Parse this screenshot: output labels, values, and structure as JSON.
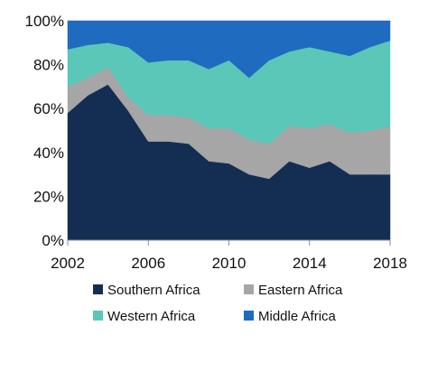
{
  "chart_data": {
    "type": "area",
    "stacking": "percent",
    "x": [
      2002,
      2003,
      2004,
      2005,
      2006,
      2007,
      2008,
      2009,
      2010,
      2011,
      2012,
      2013,
      2014,
      2015,
      2016,
      2017,
      2018
    ],
    "series": [
      {
        "name": "Southern Africa",
        "color": "#142d53",
        "values": [
          58,
          66,
          71,
          59,
          45,
          45,
          44,
          36,
          35,
          30,
          28,
          36,
          33,
          36,
          30,
          30,
          30
        ]
      },
      {
        "name": "Eastern Africa",
        "color": "#a6a6a6",
        "values": [
          12,
          8,
          8,
          6,
          12,
          12,
          12,
          15,
          16,
          16,
          16,
          16,
          18,
          17,
          19,
          20,
          22
        ]
      },
      {
        "name": "Western Africa",
        "color": "#5bc7b8",
        "values": [
          17,
          15,
          11,
          23,
          24,
          25,
          26,
          27,
          31,
          28,
          38,
          34,
          37,
          33,
          35,
          38,
          39
        ]
      },
      {
        "name": "Middle Africa",
        "color": "#1f6bbf",
        "values": [
          13,
          11,
          10,
          12,
          19,
          18,
          18,
          22,
          18,
          26,
          18,
          14,
          12,
          14,
          16,
          12,
          9
        ]
      }
    ],
    "ylim": [
      0,
      100
    ],
    "yticks": [
      "0%",
      "20%",
      "40%",
      "60%",
      "80%",
      "100%"
    ],
    "xticks": [
      "2002",
      "2006",
      "2010",
      "2014",
      "2018"
    ],
    "legend_placement": "bottom",
    "grid": false
  }
}
